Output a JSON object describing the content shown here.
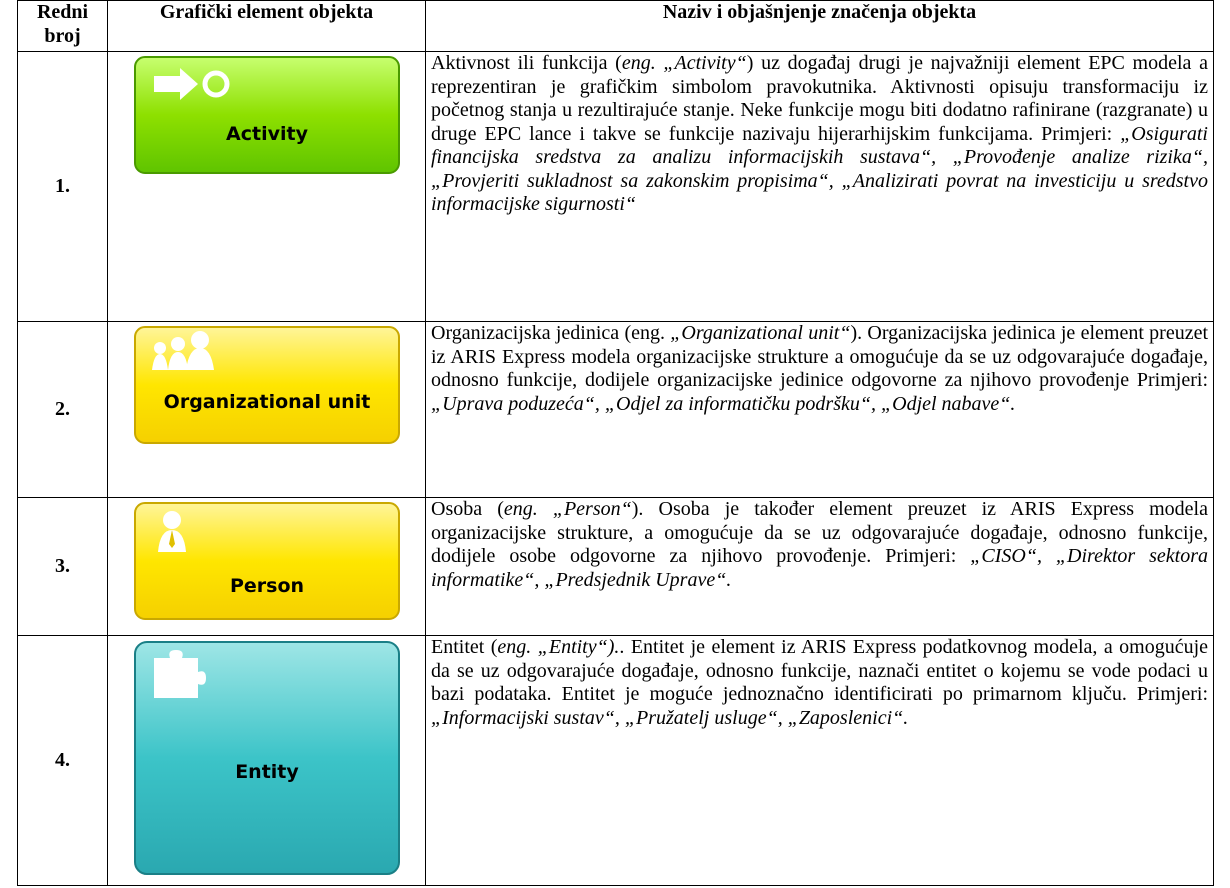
{
  "table": {
    "header": [
      "Redni broj",
      "Grafički element objekta",
      "Naziv i objašnjenje značenja objekta"
    ],
    "rows": [
      {
        "number": "1.",
        "icon_label": "Activity",
        "description": [
          "Aktivnost ili funkcija (",
          "eng. „Activity“",
          ") uz događaj drugi je najvažniji element EPC modela a reprezentiran je grafičkim simbolom pravokutnika. Aktivnosti opisuju transformaciju iz početnog stanja u rezultirajuće stanje. Neke funkcije mogu biti dodatno rafinirane (razgranate) u druge EPC lance i takve se funkcije nazivaju hijerarhijskim funkcijama. Primjeri: ",
          "„Osigurati financijska sredstva za analizu informacijskih sustava“, „Provođenje analize rizika“, „Provjeriti sukladnost sa zakonskim propisima“, „Analizirati povrat na investiciju u sredstvo informacijske sigurnosti“"
        ]
      },
      {
        "number": "2.",
        "icon_label": "Organizational unit",
        "description": [
          "Organizacijska jedinica (eng. ",
          "„Organizational unit“",
          "). Organizacijska jedinica je element preuzet iz ARIS Express modela organizacijske strukture a omogućuje da se uz odgovarajuće događaje, odnosno funkcije, dodijele organizacijske jedinice odgovorne za njihovo provođenje Primjeri: ",
          "„Uprava poduzeća“, „Odjel za informatičku podršku“, „Odjel nabave“."
        ]
      },
      {
        "number": "3.",
        "icon_label": "Person",
        "description": [
          "Osoba (",
          "eng. „Person“",
          "). Osoba je također element preuzet iz ARIS Express modela organizacijske strukture, a omogućuje da se uz odgovarajuće događaje, odnosno funkcije, dodijele osobe odgovorne za njihovo provođenje. Primjeri: ",
          "„CISO“, „Direktor sektora informatike“, „Predsjednik Uprave“."
        ]
      },
      {
        "number": "4.",
        "icon_label": "Entity",
        "description": [
          "Entitet (",
          "eng. „Entity“).",
          ". Entitet je element iz ARIS Express podatkovnog modela, a omogućuje da se uz odgovarajuće događaje, odnosno funkcije, naznači entitet o kojemu se vode podaci u bazi podataka. Entitet je moguće jednoznačno identificirati po primarnom ključu. Primjeri: ",
          "„Informacijski sustav“, „Pružatelj usluge“, „Zaposlenici“."
        ]
      }
    ]
  }
}
